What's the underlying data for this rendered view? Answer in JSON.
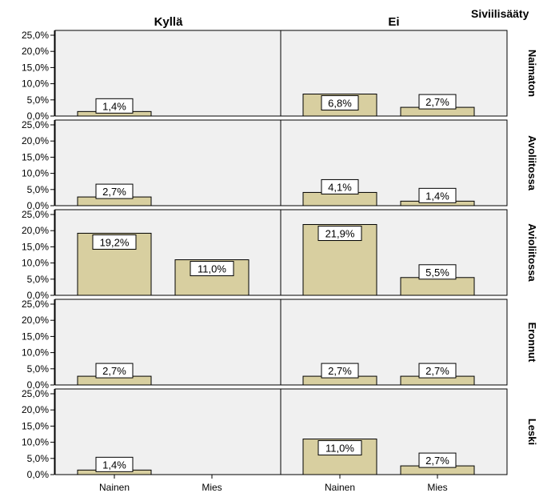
{
  "chart_data": {
    "type": "bar",
    "legend_title": "Siviilisääty",
    "columns": [
      "Kyllä",
      "Ei"
    ],
    "rows": [
      "Naimaton",
      "Avoliitossa",
      "Avioliitossa",
      "Eronnut",
      "Leski"
    ],
    "categories": [
      "Nainen",
      "Mies"
    ],
    "y_ticks": [
      "0,0%",
      "5,0%",
      "10,0%",
      "15,0%",
      "20,0%",
      "25,0%"
    ],
    "ylim": [
      0,
      25
    ],
    "panels": [
      {
        "row": 0,
        "col": 0,
        "values": [
          1.4,
          null
        ],
        "labels": [
          "1,4%",
          ""
        ]
      },
      {
        "row": 0,
        "col": 1,
        "values": [
          6.8,
          2.7
        ],
        "labels": [
          "6,8%",
          "2,7%"
        ]
      },
      {
        "row": 1,
        "col": 0,
        "values": [
          2.7,
          null
        ],
        "labels": [
          "2,7%",
          ""
        ]
      },
      {
        "row": 1,
        "col": 1,
        "values": [
          4.1,
          1.4
        ],
        "labels": [
          "4,1%",
          "1,4%"
        ]
      },
      {
        "row": 2,
        "col": 0,
        "values": [
          19.2,
          11.0
        ],
        "labels": [
          "19,2%",
          "11,0%"
        ]
      },
      {
        "row": 2,
        "col": 1,
        "values": [
          21.9,
          5.5
        ],
        "labels": [
          "21,9%",
          "5,5%"
        ]
      },
      {
        "row": 3,
        "col": 0,
        "values": [
          2.7,
          null
        ],
        "labels": [
          "2,7%",
          ""
        ]
      },
      {
        "row": 3,
        "col": 1,
        "values": [
          2.7,
          2.7
        ],
        "labels": [
          "2,7%",
          "2,7%"
        ]
      },
      {
        "row": 4,
        "col": 0,
        "values": [
          1.4,
          null
        ],
        "labels": [
          "1,4%",
          ""
        ]
      },
      {
        "row": 4,
        "col": 1,
        "values": [
          11.0,
          2.7
        ],
        "labels": [
          "11,0%",
          "2,7%"
        ]
      }
    ],
    "bar_color": "#d8cfa0",
    "panel_color": "#f0f0f0"
  }
}
